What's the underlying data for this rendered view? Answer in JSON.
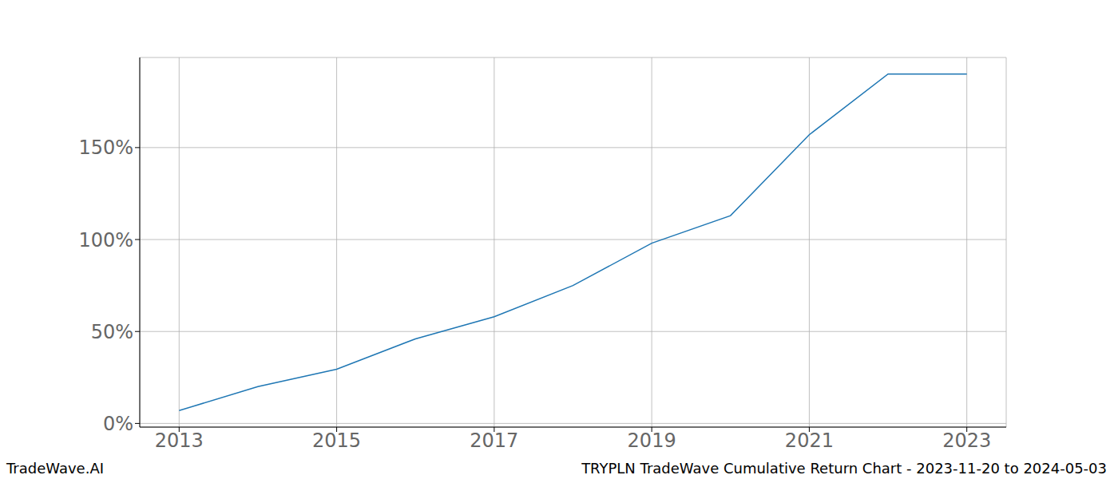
{
  "chart_data": {
    "type": "line",
    "title": "TRYPLN TradeWave Cumulative Return Chart - 2023-11-20 to 2024-05-03",
    "annotations": [
      "TradeWave.AI"
    ],
    "x": [
      2013,
      2014,
      2015,
      2016,
      2017,
      2018,
      2019,
      2020,
      2021,
      2022,
      2023
    ],
    "series": [
      {
        "name": "TRYPLN",
        "color": "#1f77b4",
        "values": [
          7,
          20,
          29.5,
          46,
          58,
          75,
          98,
          113,
          157,
          190,
          190
        ]
      }
    ],
    "xlim": [
      2012.5,
      2023.5
    ],
    "xticks": [
      2013,
      2015,
      2017,
      2019,
      2021,
      2023
    ],
    "ylim": [
      -2,
      199
    ],
    "yticks": [
      {
        "value": 0,
        "label": "0%"
      },
      {
        "value": 50,
        "label": "50%"
      },
      {
        "value": 100,
        "label": "100%"
      },
      {
        "value": 150,
        "label": "150%"
      }
    ],
    "grid": true
  }
}
